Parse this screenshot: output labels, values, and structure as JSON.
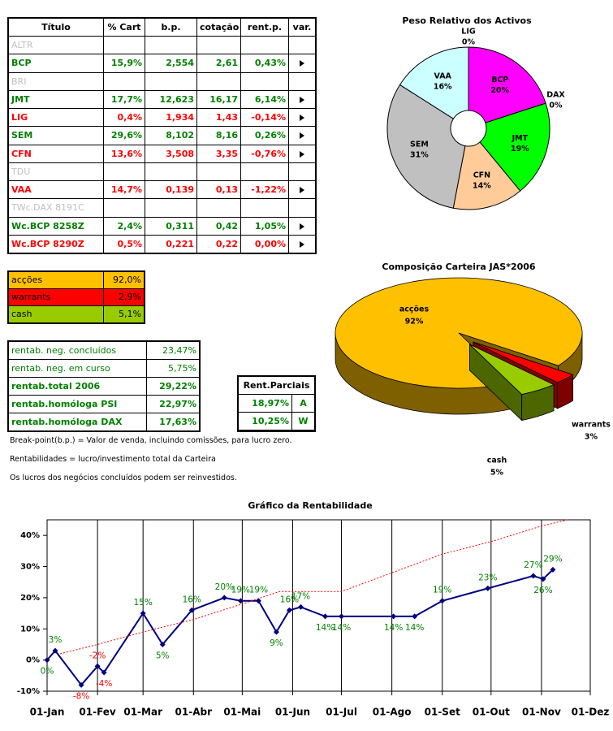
{
  "table": {
    "headers": [
      "Título",
      "% Cart",
      "b.p.",
      "cotação",
      "rent.p.",
      "var."
    ],
    "rows": [
      {
        "name": "ALTR",
        "color": "#c0c0c0"
      },
      {
        "name": "BCP",
        "cart": "15,9%",
        "bp": "2,554",
        "cotacao": "2,61",
        "rent": "0,43%",
        "color": "#008000"
      },
      {
        "name": "BRI",
        "color": "#c0c0c0"
      },
      {
        "name": "JMT",
        "cart": "17,7%",
        "bp": "12,623",
        "cotacao": "16,17",
        "rent": "6,14%",
        "color": "#008000"
      },
      {
        "name": "LIG",
        "cart": "0,4%",
        "bp": "1,934",
        "cotacao": "1,43",
        "rent": "-0,14%",
        "color": "#ff0000"
      },
      {
        "name": "SEM",
        "cart": "29,6%",
        "bp": "8,102",
        "cotacao": "8,16",
        "rent": "0,26%",
        "color": "#008000"
      },
      {
        "name": "CFN",
        "cart": "13,6%",
        "bp": "3,508",
        "cotacao": "3,35",
        "rent": "-0,76%",
        "color": "#ff0000"
      },
      {
        "name": "TDU",
        "color": "#c0c0c0"
      },
      {
        "name": "VAA",
        "cart": "14,7%",
        "bp": "0,139",
        "cotacao": "0,13",
        "rent": "-1,22%",
        "color": "#ff0000"
      },
      {
        "name": "TWc.DAX 8191C",
        "color": "#c0c0c0"
      },
      {
        "name": "Wc.BCP 8258Z",
        "cart": "2,4%",
        "bp": "0,311",
        "cotacao": "0,42",
        "rent": "1,05%",
        "color": "#008000"
      },
      {
        "name": "Wc.BCP 8290Z",
        "cart": "0,5%",
        "bp": "0,221",
        "cotacao": "0,22",
        "rent": "0,00%",
        "color": "#ff0000"
      }
    ]
  },
  "allocation": {
    "rows": [
      {
        "label": "acções",
        "value": "92,0%",
        "color": "#ffc000"
      },
      {
        "label": "warrants",
        "value": "2,9%",
        "color": "#ff0000"
      },
      {
        "label": "cash",
        "value": "5,1%",
        "color": "#99cc00"
      }
    ]
  },
  "returns": {
    "color": "#008000",
    "rows": [
      {
        "label": "rentab. neg. concluídos",
        "value": "23,47%",
        "bold": false
      },
      {
        "label": "rentab. neg. em curso",
        "value": "5,75%",
        "bold": false
      },
      {
        "label": "rentab.total 2006",
        "value": "29,22%",
        "bold": true
      },
      {
        "label": "rentab.homóloga PSI",
        "value": "22,97%",
        "bold": true
      },
      {
        "label": "rentab.homóloga DAX",
        "value": "17,63%",
        "bold": true
      }
    ]
  },
  "partial": {
    "header": "Rent.Parciais",
    "color": "#008000",
    "rows": [
      {
        "value": "18,97%",
        "code": "A"
      },
      {
        "value": "10,25%",
        "code": "W"
      }
    ]
  },
  "notes": [
    "Break-point(b.p.) = Valor de venda, incluindo comissões, para lucro zero.",
    "Rentabilidades = lucro/investimento total da Carteira",
    "Os lucros dos negócios concluídos podem ser reinvestidos."
  ],
  "chart_data": [
    {
      "type": "donut",
      "title": "Peso Relativo dos Activos",
      "categories": [
        "BCP",
        "DAX",
        "JMT",
        "CFN",
        "SEM",
        "VAA",
        "LIG"
      ],
      "values": [
        20,
        0,
        19,
        14,
        31,
        16,
        0
      ],
      "value_labels": [
        "20%",
        "0%",
        "19%",
        "14%",
        "31%",
        "16%",
        "0%"
      ],
      "colors": [
        "#ff00ff",
        "#9999ff",
        "#00ff00",
        "#ffcc99",
        "#c0c0c0",
        "#ccffff",
        "#993366"
      ]
    },
    {
      "type": "pie3d",
      "title": "Composição Carteira JAS*2006",
      "categories": [
        "acções",
        "warrants",
        "cash"
      ],
      "values": [
        92,
        3,
        5
      ],
      "value_labels": [
        "92%",
        "3%",
        "5%"
      ],
      "colors": [
        "#ffc000",
        "#ff0000",
        "#99cc00"
      ]
    },
    {
      "type": "line",
      "title": "Gráfico da Rentabilidade",
      "xlim": [
        0,
        334
      ],
      "xticks": [
        {
          "value": 0,
          "label": "01-Jan"
        },
        {
          "value": 31,
          "label": "01-Fev"
        },
        {
          "value": 59,
          "label": "01-Mar"
        },
        {
          "value": 90,
          "label": "01-Abr"
        },
        {
          "value": 120,
          "label": "01-Mai"
        },
        {
          "value": 151,
          "label": "01-Jun"
        },
        {
          "value": 181,
          "label": "01-Jul"
        },
        {
          "value": 212,
          "label": "01-Ago"
        },
        {
          "value": 243,
          "label": "01-Set"
        },
        {
          "value": 273,
          "label": "01-Out"
        },
        {
          "value": 304,
          "label": "01-Nov"
        },
        {
          "value": 334,
          "label": "01-Dez"
        }
      ],
      "ylim": [
        -10,
        45
      ],
      "yticks": [
        {
          "value": -10,
          "label": "-10%"
        },
        {
          "value": 0,
          "label": "0%"
        },
        {
          "value": 10,
          "label": "10%"
        },
        {
          "value": 20,
          "label": "20%"
        },
        {
          "value": 30,
          "label": "30%"
        },
        {
          "value": 40,
          "label": "40%"
        }
      ],
      "grid": "x",
      "series": [
        {
          "color": "#000080",
          "label_color": "#008000",
          "negative_label_color": "#ff0000",
          "markers": true,
          "x": [
            0,
            5,
            21,
            31,
            35,
            59,
            71,
            89,
            109,
            119,
            130,
            141,
            149,
            156,
            171,
            181,
            213,
            226,
            243,
            271,
            299,
            305,
            311
          ],
          "values": [
            0,
            3,
            -8,
            -2,
            -4,
            15,
            5,
            16,
            20,
            19,
            19,
            9,
            16,
            17,
            14,
            14,
            14,
            14,
            19,
            23,
            27,
            26,
            29
          ],
          "value_labels": [
            "0%",
            "3%",
            "-8%",
            "-2%",
            "-4%",
            "15%",
            "5%",
            "16%",
            "20%",
            "19%",
            "19%",
            "9%",
            "16%",
            "17%",
            "14%",
            "14%",
            "14%",
            "14%",
            "19%",
            "23%",
            "27%",
            "26%",
            "29%"
          ]
        },
        {
          "color": "#ff0000",
          "dashed": true,
          "markers": false,
          "x": [
            8,
            31,
            59,
            90,
            120,
            143,
            168,
            181,
            212,
            243,
            273,
            304,
            320
          ],
          "values": [
            2,
            5,
            9,
            13,
            18,
            22,
            22,
            22,
            28,
            34,
            38,
            43,
            45
          ]
        }
      ]
    }
  ]
}
